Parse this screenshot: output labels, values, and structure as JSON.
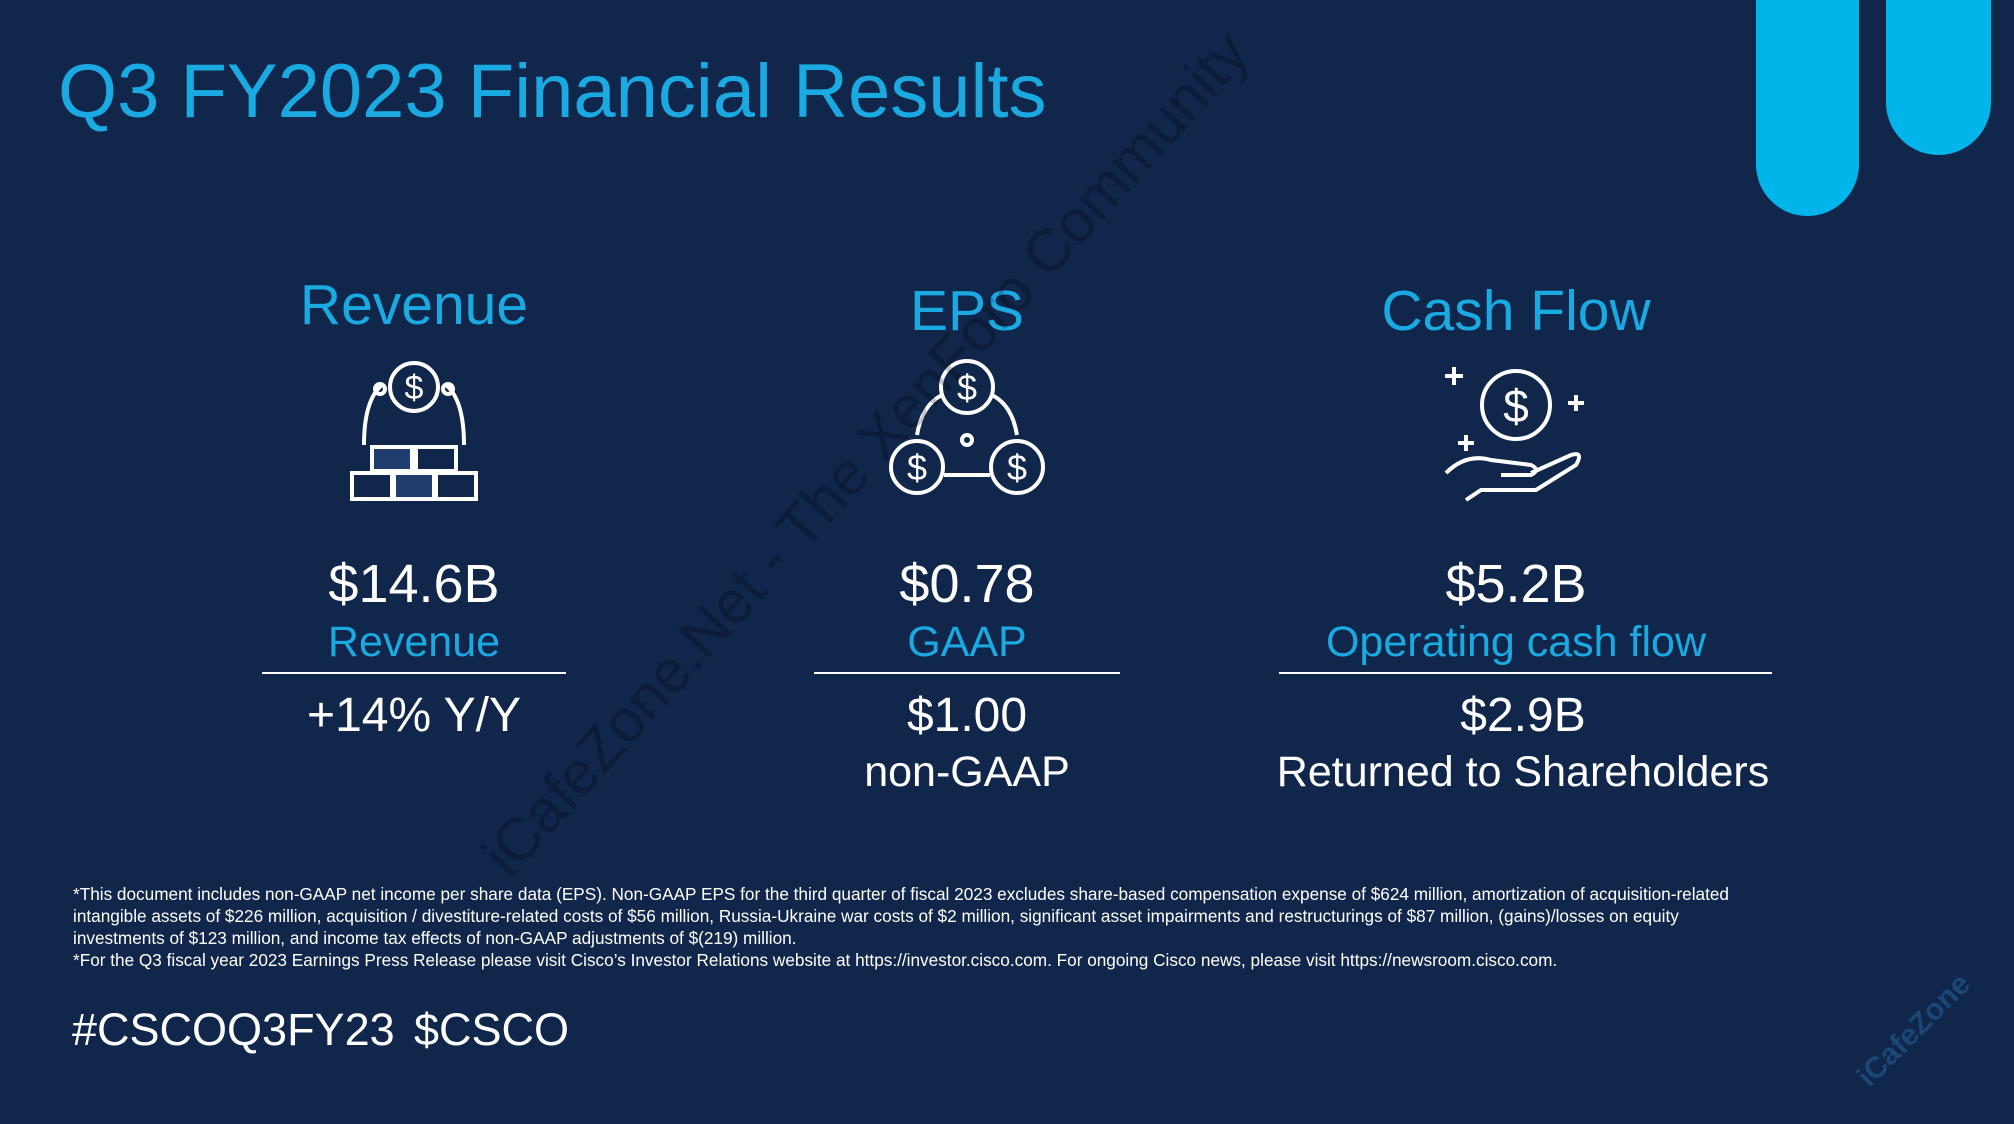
{
  "header": {
    "title": "Q3 FY2023 Financial Results"
  },
  "columns": [
    {
      "heading": "Revenue",
      "value": "$14.6B",
      "label": "Revenue",
      "second_value": "+14% Y/Y",
      "second_label": null
    },
    {
      "heading": "EPS",
      "value": "$0.78",
      "label": "GAAP",
      "second_value": "$1.00",
      "second_label": "non-GAAP"
    },
    {
      "heading": "Cash Flow",
      "value": "$5.2B",
      "label": "Operating cash flow",
      "second_value": "$2.9B",
      "second_label": "Returned to Shareholders"
    }
  ],
  "footnotes": [
    "*This document includes non-GAAP net income per share data (EPS). Non-GAAP EPS for the third quarter of fiscal 2023 excludes share-based compensation expense of $624 million, amortization of acquisition-related",
    "intangible assets of $226 million, acquisition / divestiture-related costs of $56 million, Russia-Ukraine war costs of $2 million, significant asset impairments and restructurings of $87 million, (gains)/losses on equity",
    "investments of $123 million, and income tax effects of non-GAAP adjustments of $(219) million.",
    "*For the Q3 fiscal year 2023 Earnings Press Release please visit Cisco’s Investor Relations website at https://investor.cisco.com. For ongoing Cisco news, please visit https://newsroom.cisco.com."
  ],
  "hashtags": [
    "#CSCOQ3FY23",
    "$CSCO"
  ],
  "watermarks": [
    "iCafeZone.Net - The XenForo Community",
    "iCafeZone"
  ]
}
